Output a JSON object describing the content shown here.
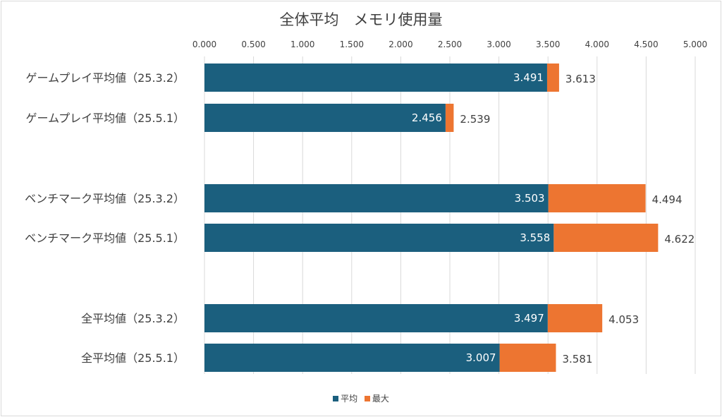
{
  "chart_data": {
    "type": "bar",
    "orientation": "horizontal",
    "title": "全体平均　メモリ使用量",
    "xlim": [
      0,
      5
    ],
    "x_ticks": [
      "0.000",
      "0.500",
      "1.000",
      "1.500",
      "2.000",
      "2.500",
      "3.000",
      "3.500",
      "4.000",
      "4.500",
      "5.000"
    ],
    "x_tick_values": [
      0,
      0.5,
      1,
      1.5,
      2,
      2.5,
      3,
      3.5,
      4,
      4.5,
      5
    ],
    "grid": true,
    "legend_position": "bottom",
    "categories": [
      "ゲームプレイ平均値（25.3.2）",
      "ゲームプレイ平均値（25.5.1）",
      "ベンチマーク平均値（25.3.2）",
      "ベンチマーク平均値（25.5.1）",
      "全平均値（25.3.2）",
      "全平均値（25.5.1）"
    ],
    "series": [
      {
        "name": "平均",
        "color": "#1b5f7e",
        "values": [
          3.491,
          2.456,
          3.503,
          3.558,
          3.497,
          3.007
        ],
        "labels": [
          "3.491",
          "2.456",
          "3.503",
          "3.558",
          "3.497",
          "3.007"
        ]
      },
      {
        "name": "最大",
        "color": "#ed7531",
        "values": [
          3.613,
          2.539,
          4.494,
          4.622,
          4.053,
          3.581
        ],
        "labels": [
          "3.613",
          "2.539",
          "4.494",
          "4.622",
          "4.053",
          "3.581"
        ]
      }
    ]
  }
}
